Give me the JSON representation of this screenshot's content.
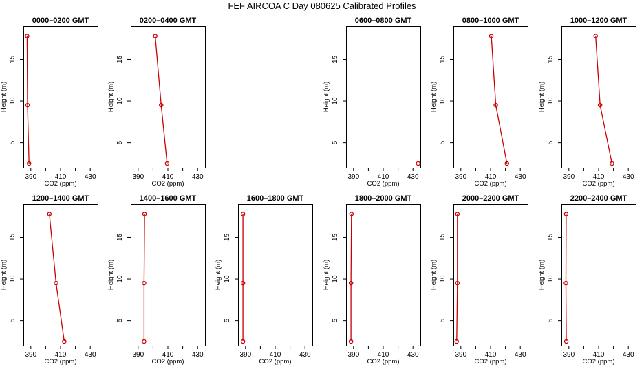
{
  "chart_data": {
    "type": "line",
    "title": "FEF AIRCOA C  Day 080625  Calibrated Profiles",
    "xlabel": "CO2 (ppm)",
    "ylabel": "Height (m)",
    "xlim": [
      385,
      435
    ],
    "ylim": [
      2,
      19
    ],
    "xticks": [
      390,
      400,
      410,
      420,
      430
    ],
    "xtick_labels": [
      "390",
      "",
      "410",
      "",
      "430"
    ],
    "yticks": [
      5,
      10,
      15
    ],
    "yticks_labels": [
      "5",
      "10",
      "15"
    ],
    "panels": [
      {
        "title": "0000–0200 GMT",
        "points": [
          {
            "x": 387.5,
            "y": 17.8
          },
          {
            "x": 387.8,
            "y": 9.5
          },
          {
            "x": 388.8,
            "y": 2.5
          }
        ]
      },
      {
        "title": "0200–0400 GMT",
        "points": [
          {
            "x": 401.5,
            "y": 17.8
          },
          {
            "x": 405.5,
            "y": 9.5
          },
          {
            "x": 409.5,
            "y": 2.5
          }
        ]
      },
      null,
      {
        "title": "0600–0800 GMT",
        "points": [
          {
            "x": 433.5,
            "y": 2.5
          }
        ]
      },
      {
        "title": "0800–1000 GMT",
        "points": [
          {
            "x": 410.5,
            "y": 17.8
          },
          {
            "x": 413.5,
            "y": 9.5
          },
          {
            "x": 421.0,
            "y": 2.5
          }
        ]
      },
      {
        "title": "1000–1200 GMT",
        "points": [
          {
            "x": 408.0,
            "y": 17.8
          },
          {
            "x": 411.0,
            "y": 9.5
          },
          {
            "x": 419.0,
            "y": 2.5
          }
        ]
      },
      {
        "title": "1200–1400 GMT",
        "points": [
          {
            "x": 402.5,
            "y": 17.8
          },
          {
            "x": 407.0,
            "y": 9.5
          },
          {
            "x": 412.5,
            "y": 2.5
          }
        ]
      },
      {
        "title": "1400–1600 GMT",
        "points": [
          {
            "x": 394.3,
            "y": 17.8
          },
          {
            "x": 394.0,
            "y": 9.5
          },
          {
            "x": 394.0,
            "y": 2.5
          }
        ]
      },
      {
        "title": "1600–1800 GMT",
        "points": [
          {
            "x": 388.3,
            "y": 17.8
          },
          {
            "x": 388.3,
            "y": 9.5
          },
          {
            "x": 388.3,
            "y": 2.5
          }
        ]
      },
      {
        "title": "1800–2000 GMT",
        "points": [
          {
            "x": 388.6,
            "y": 17.8
          },
          {
            "x": 388.3,
            "y": 9.5
          },
          {
            "x": 388.3,
            "y": 2.5
          }
        ]
      },
      {
        "title": "2000–2200 GMT",
        "points": [
          {
            "x": 387.7,
            "y": 17.8
          },
          {
            "x": 387.7,
            "y": 9.5
          },
          {
            "x": 387.2,
            "y": 2.5
          }
        ]
      },
      {
        "title": "2200–2400 GMT",
        "points": [
          {
            "x": 388.2,
            "y": 17.8
          },
          {
            "x": 388.0,
            "y": 9.5
          },
          {
            "x": 388.3,
            "y": 2.5
          }
        ]
      }
    ]
  }
}
